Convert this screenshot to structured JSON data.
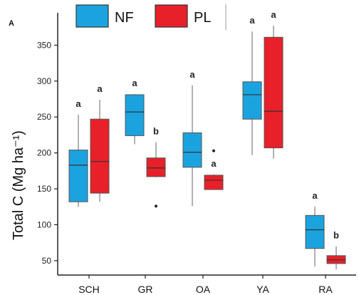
{
  "chart_data": {
    "type": "box",
    "panel_label": "A",
    "ylabel": "Total C (Mg ha⁻¹)",
    "xlabel": "",
    "ylim": [
      30,
      395
    ],
    "yticks": [
      50,
      100,
      150,
      200,
      250,
      300,
      350
    ],
    "categories": [
      "SCH",
      "GR",
      "OA",
      "YA",
      "RA"
    ],
    "legend_position": "top",
    "series": [
      {
        "name": "NF",
        "color": "#1ba3e0",
        "boxes": [
          {
            "whisker_low": 125,
            "q1": 132,
            "median": 183,
            "q3": 204,
            "whisker_high": 253,
            "outliers": [],
            "letter": "a"
          },
          {
            "whisker_low": 212,
            "q1": 224,
            "median": 257,
            "q3": 281,
            "whisker_high": 282,
            "outliers": [],
            "letter": "a"
          },
          {
            "whisker_low": 126,
            "q1": 180,
            "median": 201,
            "q3": 228,
            "whisker_high": 294,
            "outliers": [],
            "letter": "a"
          },
          {
            "whisker_low": 197,
            "q1": 247,
            "median": 281,
            "q3": 299,
            "whisker_high": 369,
            "outliers": [],
            "letter": "a"
          },
          {
            "whisker_low": 42,
            "q1": 67,
            "median": 93,
            "q3": 113,
            "whisker_high": 125,
            "outliers": [],
            "letter": "a"
          }
        ]
      },
      {
        "name": "PL",
        "color": "#e8202a",
        "boxes": [
          {
            "whisker_low": 132,
            "q1": 144,
            "median": 188,
            "q3": 247,
            "whisker_high": 274,
            "outliers": [],
            "letter": "a"
          },
          {
            "whisker_low": 166,
            "q1": 167,
            "median": 179,
            "q3": 193,
            "whisker_high": 215,
            "outliers": [
              126
            ],
            "letter": "b"
          },
          {
            "whisker_low": 149,
            "q1": 149,
            "median": 162,
            "q3": 169,
            "whisker_high": 170,
            "outliers": [
              203
            ],
            "letter": "a"
          },
          {
            "whisker_low": 192,
            "q1": 207,
            "median": 258,
            "q3": 361,
            "whisker_high": 377,
            "outliers": [],
            "letter": "a"
          },
          {
            "whisker_low": 38,
            "q1": 46,
            "median": 51,
            "q3": 57,
            "whisker_high": 70,
            "outliers": [],
            "letter": "b"
          }
        ]
      }
    ]
  }
}
